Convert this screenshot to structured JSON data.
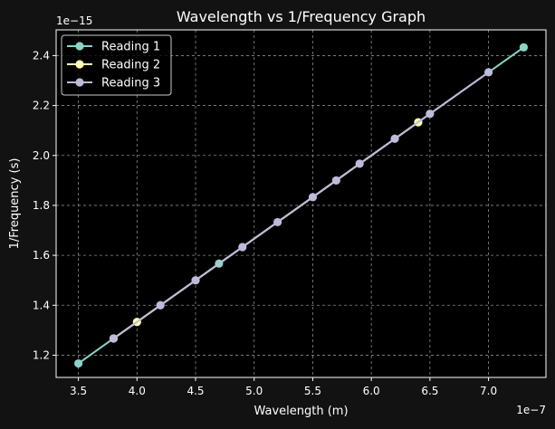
{
  "chart_data": {
    "type": "line",
    "title": "Wavelength vs 1/Frequency Graph",
    "xlabel": "Wavelength (m)",
    "ylabel": "1/Frequency (s)",
    "x_offset_label": "1e−7",
    "y_offset_label": "1e−15",
    "xlim": [
      3.31e-07,
      7.49e-07
    ],
    "ylim": [
      1.111e-15,
      2.503e-15
    ],
    "x_scale_factor": 1e-07,
    "y_scale_factor": 1e-15,
    "x_ticks": [
      3.5e-07,
      4e-07,
      4.5e-07,
      5e-07,
      5.5e-07,
      6e-07,
      6.5e-07,
      7e-07
    ],
    "x_tick_labels": [
      "3.5",
      "4.0",
      "4.5",
      "5.0",
      "5.5",
      "6.0",
      "6.5",
      "7.0"
    ],
    "y_ticks": [
      1.2e-15,
      1.4e-15,
      1.6e-15,
      1.8e-15,
      2e-15,
      2.2e-15,
      2.4e-15
    ],
    "y_tick_labels": [
      "1.2",
      "1.4",
      "1.6",
      "1.8",
      "2.0",
      "2.2",
      "2.4"
    ],
    "grid": true,
    "legend_position": "upper-left",
    "background": "#000000",
    "figure_background": "#121212",
    "series": [
      {
        "name": "Reading 1",
        "color": "#8dd3c7",
        "x": [
          3.5e-07,
          4.7e-07,
          7.3e-07
        ],
        "y": [
          1.167e-15,
          1.567e-15,
          2.433e-15
        ]
      },
      {
        "name": "Reading 2",
        "color": "#ffffb3",
        "x": [
          3.8e-07,
          4e-07,
          6.4e-07
        ],
        "y": [
          1.267e-15,
          1.333e-15,
          2.133e-15
        ]
      },
      {
        "name": "Reading 3",
        "color": "#bebada",
        "x": [
          3.8e-07,
          4.2e-07,
          4.5e-07,
          4.9e-07,
          5.2e-07,
          5.5e-07,
          5.7e-07,
          5.9e-07,
          6.2e-07,
          6.5e-07,
          7e-07
        ],
        "y": [
          1.267e-15,
          1.4e-15,
          1.5e-15,
          1.633e-15,
          1.733e-15,
          1.833e-15,
          1.9e-15,
          1.967e-15,
          2.067e-15,
          2.167e-15,
          2.333e-15
        ]
      }
    ]
  }
}
